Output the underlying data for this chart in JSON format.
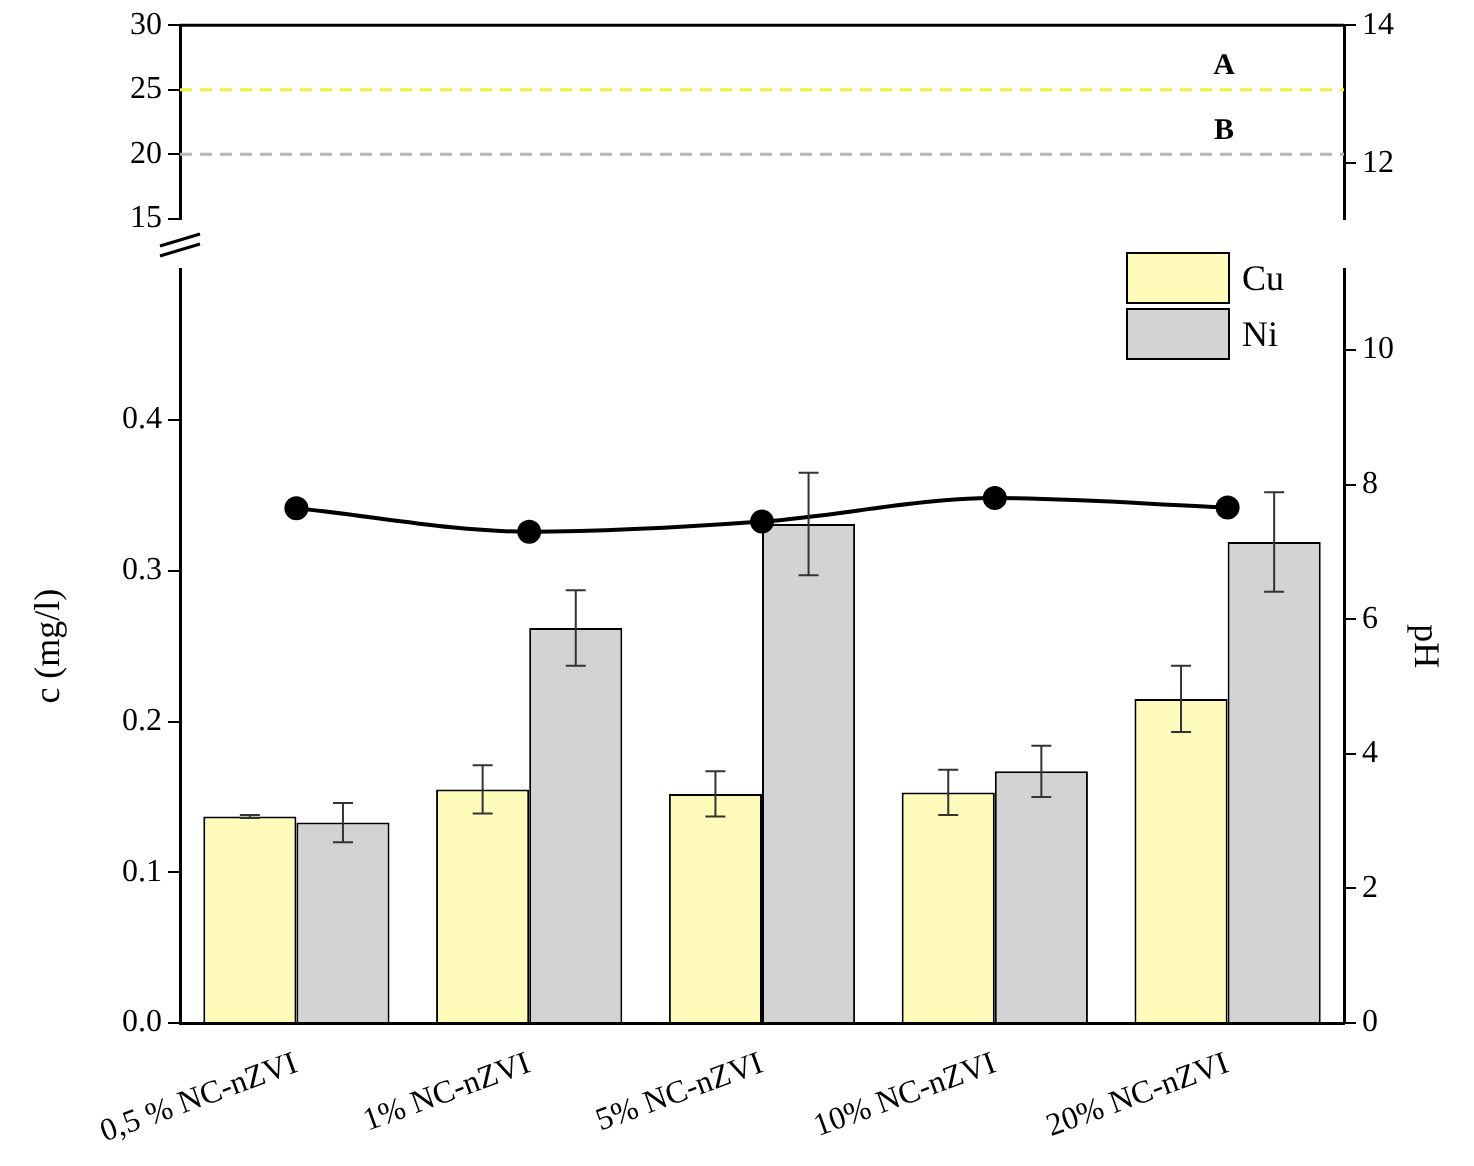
{
  "chart_data": [
    {
      "type": "bar",
      "categories": [
        null,
        null,
        null,
        null,
        null
      ],
      "tick_labels": "y",
      "ylim": [
        15,
        30
      ],
      "yticks": [
        15,
        20,
        25,
        30
      ],
      "y2lim": [
        11.2,
        14
      ],
      "y2ticks": [
        12,
        14
      ],
      "ref_lines": [
        {
          "axis": "y",
          "value": 25,
          "label": "A",
          "color": "#f0f03c",
          "line_style": "dashed"
        },
        {
          "axis": "y",
          "value": 20,
          "label": "B",
          "color": "#b4b4b4",
          "line_style": "dashed"
        }
      ],
      "grid": false
    },
    {
      "type": "bar",
      "categories": [
        "0,5 % NC-nZVI",
        "1% NC-nZVI",
        "5% NC-nZVI",
        "10% NC-nZVI",
        "20% NC-nZVI"
      ],
      "ylabel": "c (mg/l)",
      "y2label": "pH",
      "ylim": [
        0,
        0.5
      ],
      "yticks": [
        {
          "value": 0,
          "label": "0.0"
        },
        {
          "value": 0.1,
          "label": "0.1"
        },
        {
          "value": 0.2,
          "label": "0.2"
        },
        {
          "value": 0.3,
          "label": "0.3"
        },
        {
          "value": 0.4,
          "label": "0.4"
        }
      ],
      "y2lim": [
        0,
        11.2
      ],
      "y2ticks": [
        0,
        2,
        4,
        6,
        8,
        10
      ],
      "series": [
        {
          "name": "Cu",
          "color": "#fffbbb",
          "values": [
            0.137,
            0.155,
            0.152,
            0.153,
            0.215
          ],
          "errors": [
            0.001,
            0.016,
            0.015,
            0.015,
            0.022
          ]
        },
        {
          "name": "Ni",
          "color": "#d3d3d3",
          "values": [
            0.133,
            0.262,
            0.331,
            0.167,
            0.319
          ],
          "errors": [
            0.013,
            0.025,
            0.034,
            0.017,
            0.033
          ]
        },
        {
          "type": "line",
          "axis": "y2",
          "color": "#000000",
          "values": [
            7.65,
            7.3,
            7.45,
            7.8,
            7.66
          ]
        }
      ],
      "legend": "top right",
      "grid": false,
      "marker": "circle"
    }
  ]
}
